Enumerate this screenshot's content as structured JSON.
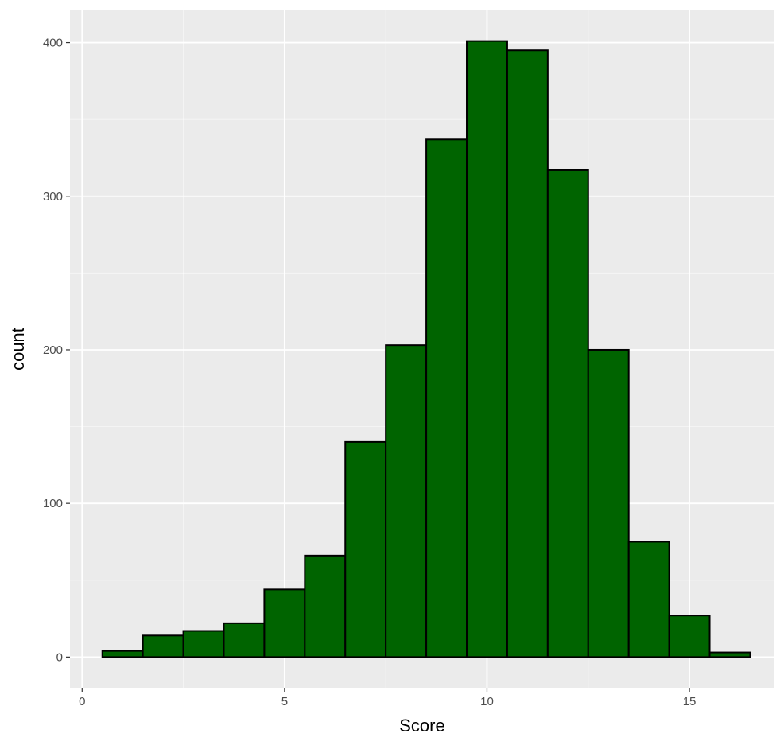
{
  "chart_data": {
    "type": "bar",
    "title": "",
    "xlabel": "Score",
    "ylabel": "count",
    "x": [
      1,
      2,
      3,
      4,
      5,
      6,
      7,
      8,
      9,
      10,
      11,
      12,
      13,
      14,
      15,
      16
    ],
    "values": [
      4,
      14,
      17,
      22,
      44,
      66,
      140,
      203,
      337,
      401,
      395,
      317,
      200,
      75,
      27,
      3
    ],
    "bin_width": 1,
    "xlim": [
      -0.3,
      17.1
    ],
    "ylim": [
      -20,
      421
    ],
    "x_ticks": [
      "0",
      "5",
      "10",
      "15"
    ],
    "y_ticks": [
      "0",
      "100",
      "200",
      "300",
      "400"
    ],
    "grid": true,
    "legend": "none"
  },
  "colors": {
    "panel_background": "#ebebeb",
    "grid_major": "#ffffff",
    "bar_fill": "#006400",
    "bar_stroke": "#000000"
  }
}
